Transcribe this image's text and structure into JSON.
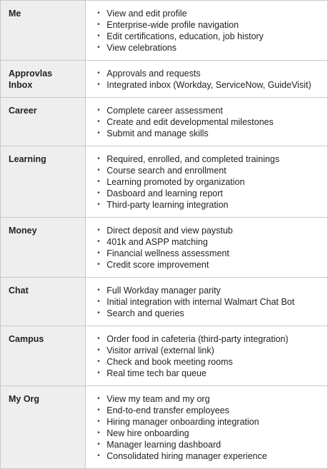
{
  "rows": [
    {
      "label": "Me",
      "items": [
        "View and edit profile",
        "Enterprise-wide profile navigation",
        "Edit certifications, education, job history",
        "View celebrations"
      ]
    },
    {
      "label": "Approvlas\nInbox",
      "items": [
        "Approvals and requests",
        "Integrated inbox (Workday, ServiceNow, GuideVisit)"
      ]
    },
    {
      "label": "Career",
      "items": [
        "Complete career assessment",
        "Create and edit developmental milestones",
        "Submit and manage skills"
      ]
    },
    {
      "label": "Learning",
      "items": [
        "Required, enrolled, and completed trainings",
        "Course search and enrollment",
        "Learning promoted by organization",
        "Dasboard and learning report",
        "Third-party learning integration"
      ]
    },
    {
      "label": "Money",
      "items": [
        "Direct deposit and view paystub",
        "401k and ASPP matching",
        "Financial wellness assessment",
        "Credit score improvement"
      ]
    },
    {
      "label": "Chat",
      "items": [
        "Full Workday manager parity",
        "Initial integration with internal Walmart Chat Bot",
        "Search and queries"
      ]
    },
    {
      "label": "Campus",
      "items": [
        "Order food in cafeteria (third-party integration)",
        "Visitor arrival (external link)",
        "Check and book meeting rooms",
        "Real time tech bar queue"
      ]
    },
    {
      "label": "My Org",
      "items": [
        "View my team and my org",
        "End-to-end transfer employees",
        "Hiring manager onboarding integration",
        "New hire onboarding",
        "Manager learning dashboard",
        "Consolidated hiring manager experience"
      ]
    }
  ]
}
